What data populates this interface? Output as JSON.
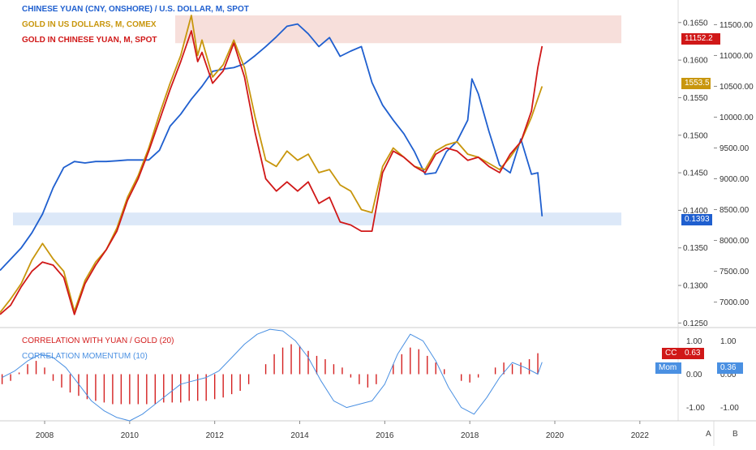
{
  "colors": {
    "yuan": "#1f5fcf",
    "gold_usd": "#c8960c",
    "gold_cny": "#d01818",
    "corr_bars": "#d42020",
    "momentum": "#4a90e2",
    "band_top": "#f4d4cf",
    "band_bottom": "#d6e4f7"
  },
  "legend": {
    "yuan": "CHINESE YUAN  (CNY, ONSHORE) / U.S. DOLLAR, M, SPOT",
    "gold_usd": "GOLD IN US DOLLARS, M, COMEX",
    "gold_cny": "GOLD IN CHINESE YUAN, M, SPOT"
  },
  "lower_legend": {
    "corr": "CORRELATION WITH YUAN / GOLD (20)",
    "mom": "CORRELATION MOMENTUM (10)"
  },
  "price_tags": {
    "gold_cny": "11152.2",
    "gold_usd": "1553.5",
    "yuan": "0.1393",
    "cc_label": "CC",
    "cc_value": "0.63",
    "mom_label": "Mom",
    "mom_value": "0.36"
  },
  "corner_labels": {
    "a": "A",
    "b": "B"
  },
  "chart_data": {
    "type": "line",
    "x_ticks": [
      "2008",
      "2010",
      "2012",
      "2014",
      "2016",
      "2018",
      "2020",
      "2022"
    ],
    "y_left_ticks": [
      "0.1650",
      "0.1600",
      "0.1550",
      "0.1500",
      "0.1450",
      "0.1400",
      "0.1350",
      "0.1300",
      "0.1250"
    ],
    "y_right_ticks": [
      "11500.00",
      "11000.00",
      "10500.00",
      "10000.00",
      "9500.00",
      "9000.00",
      "8500.00",
      "8000.00",
      "7500.00",
      "7000.00"
    ],
    "lower_left_ticks": [
      "1.00",
      "0.00",
      "-1.00"
    ],
    "lower_right_ticks": [
      "1.00",
      "0.00",
      "-1.00"
    ],
    "ylim_yuan": [
      0.1245,
      0.168
    ],
    "ylim_gold_cny": [
      6600,
      11900
    ],
    "ylim_corr": [
      -1.4,
      1.4
    ],
    "xlim": [
      2006.95,
      2022.9
    ],
    "series": [
      {
        "name": "CHINESE YUAN  (CNY, ONSHORE) / U.S. DOLLAR, M, SPOT",
        "axis": "left",
        "x": [
          2006.95,
          2007.2,
          2007.45,
          2007.7,
          2007.95,
          2008.2,
          2008.45,
          2008.7,
          2008.95,
          2009.2,
          2009.45,
          2009.7,
          2009.95,
          2010.2,
          2010.45,
          2010.7,
          2010.95,
          2011.2,
          2011.45,
          2011.7,
          2011.95,
          2012.2,
          2012.45,
          2012.7,
          2012.95,
          2013.2,
          2013.45,
          2013.7,
          2013.95,
          2014.2,
          2014.45,
          2014.7,
          2014.95,
          2015.2,
          2015.45,
          2015.7,
          2015.95,
          2016.2,
          2016.45,
          2016.7,
          2016.95,
          2017.2,
          2017.45,
          2017.7,
          2017.95,
          2018.05,
          2018.2,
          2018.45,
          2018.7,
          2018.95,
          2019.2,
          2019.45,
          2019.6,
          2019.7
        ],
        "values": [
          0.132,
          0.1335,
          0.135,
          0.137,
          0.1395,
          0.143,
          0.1457,
          0.1465,
          0.1463,
          0.1465,
          0.1465,
          0.1466,
          0.1467,
          0.1467,
          0.1467,
          0.148,
          0.1512,
          0.1528,
          0.1548,
          0.1565,
          0.1585,
          0.1588,
          0.159,
          0.1595,
          0.1606,
          0.1618,
          0.1631,
          0.1645,
          0.1648,
          0.1635,
          0.1618,
          0.163,
          0.1605,
          0.1612,
          0.1618,
          0.157,
          0.154,
          0.152,
          0.1502,
          0.1478,
          0.1448,
          0.145,
          0.1478,
          0.1492,
          0.152,
          0.1575,
          0.1555,
          0.1505,
          0.146,
          0.145,
          0.1495,
          0.1448,
          0.145,
          0.1392
        ]
      },
      {
        "name": "GOLD IN US DOLLARS, M, COMEX",
        "axis": "right",
        "x": [
          2006.95,
          2007.2,
          2007.45,
          2007.7,
          2007.95,
          2008.2,
          2008.45,
          2008.7,
          2008.95,
          2009.2,
          2009.45,
          2009.7,
          2009.95,
          2010.2,
          2010.45,
          2010.7,
          2010.95,
          2011.2,
          2011.45,
          2011.6,
          2011.7,
          2011.95,
          2012.2,
          2012.45,
          2012.7,
          2012.95,
          2013.2,
          2013.45,
          2013.7,
          2013.95,
          2014.2,
          2014.45,
          2014.7,
          2014.95,
          2015.2,
          2015.45,
          2015.7,
          2015.95,
          2016.2,
          2016.45,
          2016.7,
          2016.95,
          2017.2,
          2017.45,
          2017.7,
          2017.95,
          2018.2,
          2018.45,
          2018.7,
          2018.95,
          2019.2,
          2019.45,
          2019.6,
          2019.7
        ],
        "values": [
          6830,
          7050,
          7300,
          7680,
          7950,
          7700,
          7500,
          6850,
          7350,
          7650,
          7850,
          8200,
          8700,
          9050,
          9500,
          10050,
          10550,
          11000,
          11650,
          11000,
          11250,
          10650,
          10850,
          11250,
          10800,
          10000,
          9300,
          9200,
          9450,
          9300,
          9400,
          9100,
          9150,
          8900,
          8800,
          8500,
          8450,
          9200,
          9500,
          9350,
          9200,
          9150,
          9450,
          9550,
          9600,
          9400,
          9350,
          9250,
          9150,
          9350,
          9600,
          10000,
          10300,
          10500
        ]
      },
      {
        "name": "GOLD IN CHINESE YUAN, M, SPOT",
        "axis": "right",
        "x": [
          2006.95,
          2007.2,
          2007.45,
          2007.7,
          2007.95,
          2008.2,
          2008.45,
          2008.7,
          2008.95,
          2009.2,
          2009.45,
          2009.7,
          2009.95,
          2010.2,
          2010.45,
          2010.7,
          2010.95,
          2011.2,
          2011.45,
          2011.6,
          2011.7,
          2011.95,
          2012.2,
          2012.45,
          2012.7,
          2012.95,
          2013.2,
          2013.45,
          2013.7,
          2013.95,
          2014.2,
          2014.45,
          2014.7,
          2014.95,
          2015.2,
          2015.45,
          2015.7,
          2015.95,
          2016.2,
          2016.45,
          2016.7,
          2016.95,
          2017.2,
          2017.45,
          2017.7,
          2017.95,
          2018.2,
          2018.45,
          2018.7,
          2018.95,
          2019.2,
          2019.45,
          2019.6,
          2019.7
        ],
        "values": [
          6800,
          6950,
          7250,
          7500,
          7650,
          7600,
          7400,
          6800,
          7300,
          7600,
          7850,
          8150,
          8650,
          9000,
          9450,
          9950,
          10450,
          10900,
          11400,
          10900,
          11050,
          10550,
          10750,
          11200,
          10650,
          9750,
          9000,
          8800,
          8950,
          8800,
          8950,
          8600,
          8700,
          8300,
          8250,
          8150,
          8150,
          9100,
          9450,
          9350,
          9200,
          9100,
          9400,
          9500,
          9450,
          9300,
          9350,
          9200,
          9100,
          9400,
          9600,
          10100,
          10800,
          11152
        ]
      },
      {
        "name": "CORRELATION WITH YUAN / GOLD (20)",
        "axis": "lower",
        "type": "bar",
        "x": [
          2007.0,
          2007.2,
          2007.4,
          2007.6,
          2007.8,
          2008.0,
          2008.2,
          2008.4,
          2008.6,
          2008.8,
          2009.0,
          2009.2,
          2009.4,
          2009.6,
          2009.8,
          2010.0,
          2010.2,
          2010.4,
          2010.6,
          2010.8,
          2011.0,
          2011.2,
          2011.4,
          2011.6,
          2011.8,
          2012.0,
          2012.2,
          2012.4,
          2012.6,
          2012.8,
          2013.0,
          2013.2,
          2013.4,
          2013.6,
          2013.8,
          2014.0,
          2014.2,
          2014.4,
          2014.6,
          2014.8,
          2015.0,
          2015.2,
          2015.4,
          2015.6,
          2015.8,
          2016.0,
          2016.2,
          2016.4,
          2016.6,
          2016.8,
          2017.0,
          2017.2,
          2017.4,
          2017.6,
          2017.8,
          2018.0,
          2018.2,
          2018.4,
          2018.6,
          2018.8,
          2019.0,
          2019.2,
          2019.4,
          2019.6
        ],
        "values": [
          -0.3,
          -0.2,
          0.05,
          0.3,
          0.4,
          0.2,
          -0.2,
          -0.4,
          -0.55,
          -0.65,
          -0.75,
          -0.8,
          -0.85,
          -0.9,
          -0.9,
          -0.9,
          -0.9,
          -0.9,
          -0.9,
          -0.85,
          -0.85,
          -0.85,
          -0.8,
          -0.8,
          -0.8,
          -0.75,
          -0.7,
          -0.6,
          -0.5,
          -0.3,
          0.0,
          0.3,
          0.6,
          0.8,
          0.9,
          0.85,
          0.7,
          0.55,
          0.45,
          0.3,
          0.2,
          -0.1,
          -0.3,
          -0.4,
          -0.3,
          0.0,
          0.3,
          0.6,
          0.8,
          0.75,
          0.55,
          0.35,
          0.15,
          0.0,
          -0.2,
          -0.25,
          -0.1,
          0.0,
          0.2,
          0.35,
          0.3,
          0.35,
          0.45,
          0.63
        ]
      },
      {
        "name": "CORRELATION MOMENTUM (10)",
        "axis": "lower",
        "x": [
          2007.0,
          2007.3,
          2007.6,
          2007.9,
          2008.2,
          2008.5,
          2008.8,
          2009.1,
          2009.4,
          2009.7,
          2010.0,
          2010.3,
          2010.6,
          2010.9,
          2011.2,
          2011.5,
          2011.8,
          2012.1,
          2012.4,
          2012.7,
          2013.0,
          2013.3,
          2013.6,
          2013.9,
          2014.2,
          2014.5,
          2014.8,
          2015.1,
          2015.4,
          2015.7,
          2016.0,
          2016.3,
          2016.6,
          2016.9,
          2017.2,
          2017.5,
          2017.8,
          2018.1,
          2018.4,
          2018.7,
          2019.0,
          2019.3,
          2019.6,
          2019.7
        ],
        "values": [
          -0.1,
          0.1,
          0.4,
          0.6,
          0.5,
          0.2,
          -0.3,
          -0.8,
          -1.1,
          -1.3,
          -1.4,
          -1.2,
          -0.9,
          -0.6,
          -0.3,
          -0.2,
          -0.1,
          0.1,
          0.5,
          0.9,
          1.2,
          1.35,
          1.3,
          1.0,
          0.5,
          -0.2,
          -0.8,
          -1.0,
          -0.9,
          -0.8,
          -0.3,
          0.6,
          1.2,
          1.0,
          0.4,
          -0.4,
          -1.0,
          -1.2,
          -0.7,
          -0.1,
          0.35,
          0.2,
          0.0,
          0.36
        ]
      }
    ]
  }
}
